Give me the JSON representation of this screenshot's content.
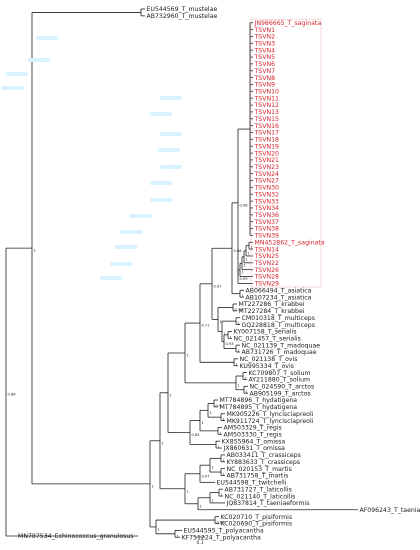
{
  "figure": {
    "type": "phylogenetic-tree",
    "outgroup_label": "MN787534_Echinococcus_granulosus",
    "scale_bar_label": "0.1",
    "highlight_color": "#d8242b",
    "line_color": "#222222",
    "tips": [
      {
        "label": "EU544569_T_mustelae",
        "red": false
      },
      {
        "label": "AB732960_T_mustelae",
        "red": false
      },
      {
        "label": "JN986665_T_saginata",
        "red": true
      },
      {
        "label": "TSVN1",
        "red": true
      },
      {
        "label": "TSVN2",
        "red": true
      },
      {
        "label": "TSVN3",
        "red": true
      },
      {
        "label": "TSVN4",
        "red": true
      },
      {
        "label": "TSVN5",
        "red": true
      },
      {
        "label": "TSVN6",
        "red": true
      },
      {
        "label": "TSVN7",
        "red": true
      },
      {
        "label": "TSVN8",
        "red": true
      },
      {
        "label": "TSVN9",
        "red": true
      },
      {
        "label": "TSVN10",
        "red": true
      },
      {
        "label": "TSVN11",
        "red": true
      },
      {
        "label": "TSVN12",
        "red": true
      },
      {
        "label": "TSVN13",
        "red": true
      },
      {
        "label": "TSVN15",
        "red": true
      },
      {
        "label": "TSVN16",
        "red": true
      },
      {
        "label": "TSVN17",
        "red": true
      },
      {
        "label": "TSVN18",
        "red": true
      },
      {
        "label": "TSVN19",
        "red": true
      },
      {
        "label": "TSVN20",
        "red": true
      },
      {
        "label": "TSVN21",
        "red": true
      },
      {
        "label": "TSVN23",
        "red": true
      },
      {
        "label": "TSVN24",
        "red": true
      },
      {
        "label": "TSVN27",
        "red": true
      },
      {
        "label": "TSVN30",
        "red": true
      },
      {
        "label": "TSVN32",
        "red": true
      },
      {
        "label": "TSVN33",
        "red": true
      },
      {
        "label": "TSVN34",
        "red": true
      },
      {
        "label": "TSVN36",
        "red": true
      },
      {
        "label": "TSVN37",
        "red": true
      },
      {
        "label": "TSVN38",
        "red": true
      },
      {
        "label": "TSVN39",
        "red": true
      },
      {
        "label": "MN452862_T_saginata",
        "red": true
      },
      {
        "label": "TSVN14",
        "red": true
      },
      {
        "label": "TSVN25",
        "red": true
      },
      {
        "label": "TSVN22",
        "red": true
      },
      {
        "label": "TSVN26",
        "red": true
      },
      {
        "label": "TSVN28",
        "red": true
      },
      {
        "label": "TSVN29",
        "red": true
      },
      {
        "label": "AB066494_T_asiatica",
        "red": false
      },
      {
        "label": "AB107234_T_asiatica",
        "red": false
      },
      {
        "label": "MT227286_T_krabbei",
        "red": false
      },
      {
        "label": "MT227284_T_krabbei",
        "red": false
      },
      {
        "label": "CM010318_T_multiceps",
        "red": false
      },
      {
        "label": "GQ228818_T_multiceps",
        "red": false
      },
      {
        "label": "KY007158_T_serialis",
        "red": false
      },
      {
        "label": "NC_021457_T_serialis",
        "red": false
      },
      {
        "label": "NC_021139_T_madoquae",
        "red": false
      },
      {
        "label": "AB731726_T_madoquae",
        "red": false
      },
      {
        "label": "NC_021138_T_ovis",
        "red": false
      },
      {
        "label": "KU995334_T_ovis",
        "red": false
      },
      {
        "label": "KC709807_T_solium",
        "red": false
      },
      {
        "label": "AY211880_T_solium",
        "red": false
      },
      {
        "label": "NC_024590_T_arctos",
        "red": false
      },
      {
        "label": "AB905199_T_arctos",
        "red": false
      },
      {
        "label": "MT784896_T_hydatigena",
        "red": false
      },
      {
        "label": "MT784895_T_hydatigena",
        "red": false
      },
      {
        "label": "MK905226_T_lyncisciapreoli",
        "red": false
      },
      {
        "label": "MK911724_T_lyncisciapreoli",
        "red": false
      },
      {
        "label": "AM503329_T_regis",
        "red": false
      },
      {
        "label": "AM503330_T_regis",
        "red": false
      },
      {
        "label": "KX855964_T_omissa",
        "red": false
      },
      {
        "label": "JX860631_T_omissa",
        "red": false
      },
      {
        "label": "AB033411_T_crassiceps",
        "red": false
      },
      {
        "label": "KY883633_T_crassiceps",
        "red": false
      },
      {
        "label": "NC_020153_T_martis",
        "red": false
      },
      {
        "label": "AB731758_T_martis",
        "red": false
      },
      {
        "label": "EU544598_T_twitchelli",
        "red": false
      },
      {
        "label": "AB731727_T_laticollis",
        "red": false
      },
      {
        "label": "NC_021140_T_laticollis",
        "red": false
      },
      {
        "label": "JQ837814_T_taeniaeformis",
        "red": false
      },
      {
        "label": "AF096243_T_taeniaeformis",
        "red": false
      },
      {
        "label": "KC020710_T_pisiformis",
        "red": false
      },
      {
        "label": "KC020690_T_pisiformis",
        "red": false
      },
      {
        "label": "EU544595_T_polyacantha",
        "red": false
      },
      {
        "label": "KF751224_T_polyacantha",
        "red": false
      }
    ],
    "support_values": [
      "1",
      "1",
      "1",
      "1",
      "1",
      "0.99",
      "1",
      "0.98",
      "0.86",
      "0.78",
      "1",
      "1",
      "1",
      "0.93",
      "1",
      "1",
      "0.97",
      "1",
      "0.71",
      "1",
      "1",
      "1",
      "1",
      "0.9",
      "1",
      "1",
      "1",
      "1",
      "1",
      "0.85",
      "1",
      "1",
      "1",
      "1",
      "0.97",
      "1",
      "1",
      "1",
      "1",
      "1",
      "0.86",
      "1",
      "1",
      "1",
      "1",
      "0.86",
      "1",
      "1",
      "0.98"
    ]
  }
}
